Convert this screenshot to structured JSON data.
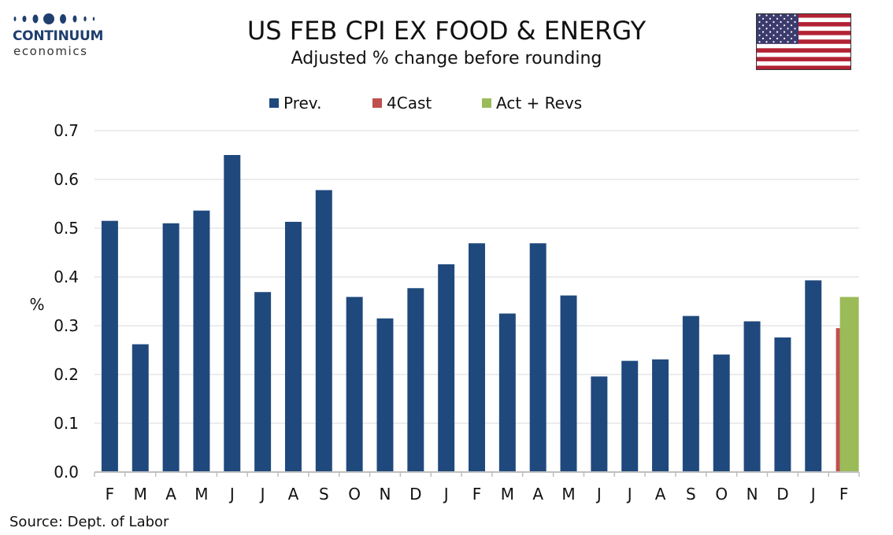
{
  "header": {
    "logo_name": "CONTINUUM",
    "logo_sub": "economics",
    "title": "US FEB CPI EX FOOD & ENERGY",
    "subtitle": "Adjusted % change before rounding",
    "flag_icon": "us-flag-icon"
  },
  "colors": {
    "prev": "#1f497d",
    "forecast": "#c0504d",
    "actual": "#9bbb59",
    "grid": "#d9d9d9",
    "logo": "#1f3f6e"
  },
  "chart_data": {
    "type": "bar",
    "categories": [
      "F",
      "M",
      "A",
      "M",
      "J",
      "J",
      "A",
      "S",
      "O",
      "N",
      "D",
      "J",
      "F",
      "M",
      "A",
      "M",
      "J",
      "J",
      "A",
      "S",
      "O",
      "N",
      "D",
      "J",
      "F"
    ],
    "series": [
      {
        "name": "Prev.",
        "values": [
          0.515,
          0.262,
          0.51,
          0.536,
          0.65,
          0.369,
          0.513,
          0.578,
          0.359,
          0.315,
          0.377,
          0.426,
          0.469,
          0.325,
          0.469,
          0.362,
          0.196,
          0.228,
          0.231,
          0.32,
          0.241,
          0.309,
          0.276,
          0.393,
          null
        ]
      },
      {
        "name": "4Cast",
        "values": [
          null,
          null,
          null,
          null,
          null,
          null,
          null,
          null,
          null,
          null,
          null,
          null,
          null,
          null,
          null,
          null,
          null,
          null,
          null,
          null,
          null,
          null,
          null,
          null,
          0.295
        ]
      },
      {
        "name": "Act + Revs",
        "values": [
          null,
          null,
          null,
          null,
          null,
          null,
          null,
          null,
          null,
          null,
          null,
          null,
          null,
          null,
          null,
          null,
          null,
          null,
          null,
          null,
          null,
          null,
          null,
          null,
          0.359
        ]
      }
    ],
    "ylabel": "%",
    "ylim": [
      0,
      0.7
    ],
    "yticks": [
      "0.0",
      "0.1",
      "0.2",
      "0.3",
      "0.4",
      "0.5",
      "0.6",
      "0.7"
    ],
    "grid": true,
    "legend": "top-center"
  },
  "footer": {
    "source": "Source: Dept. of Labor"
  }
}
